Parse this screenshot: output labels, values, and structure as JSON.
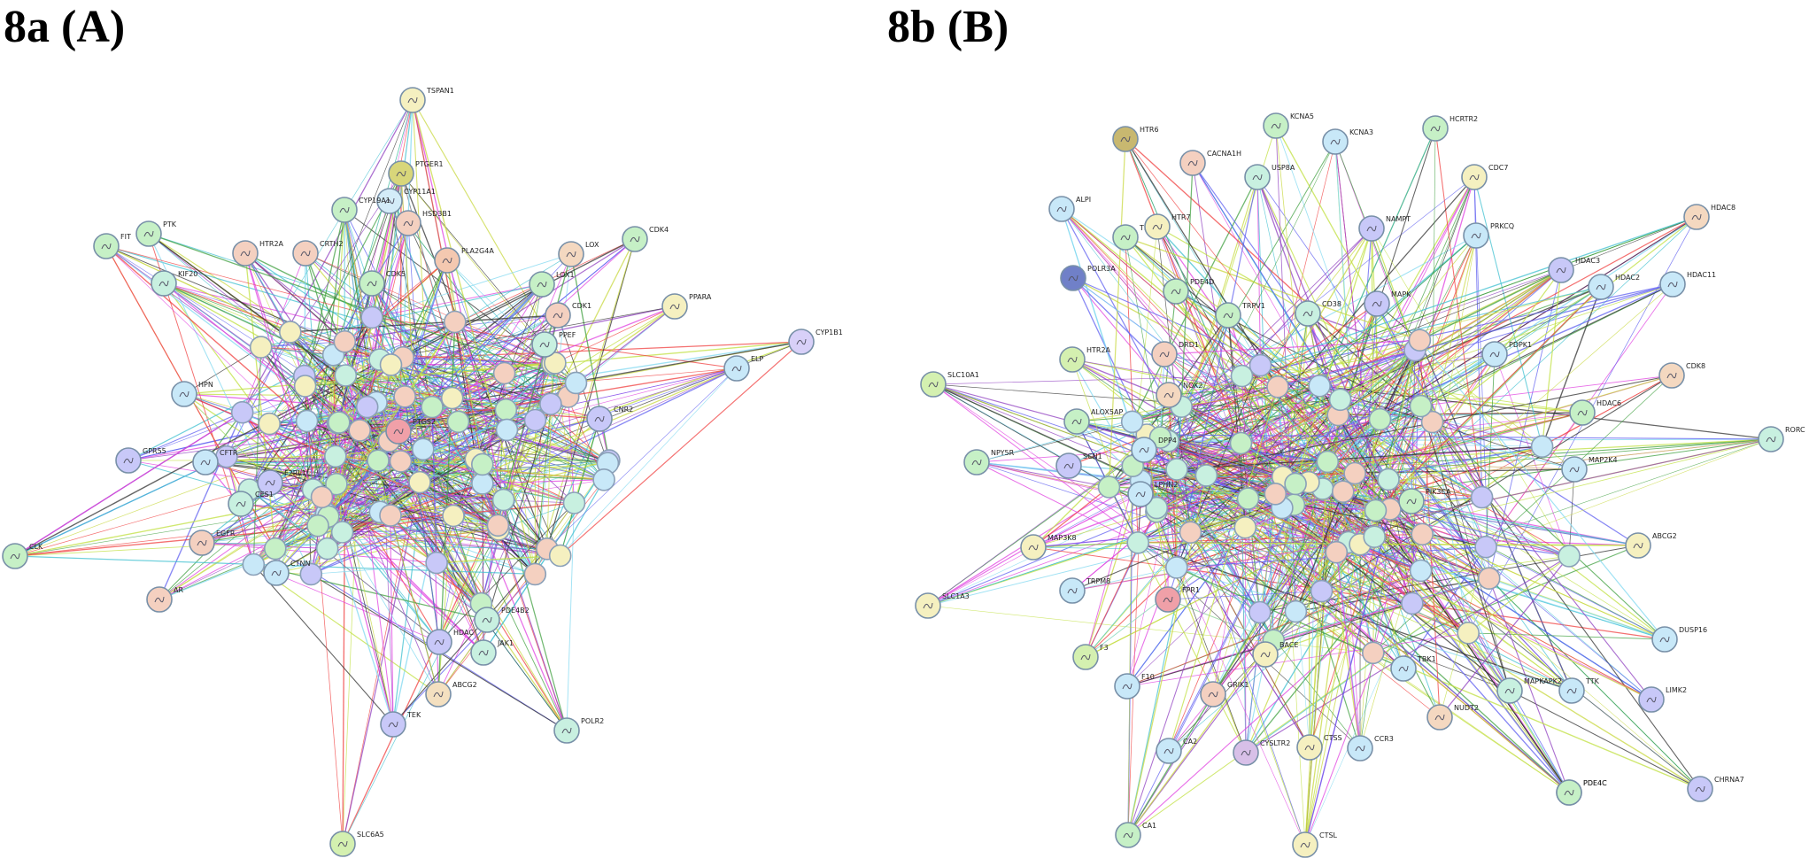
{
  "panels": [
    {
      "id": "a",
      "title": "8a (A)",
      "nodes": [
        {
          "label": "TSPAN1",
          "color": "#f5f0c0"
        },
        {
          "label": "PTGER1",
          "color": "#d8d67a"
        },
        {
          "label": "CYP11A1",
          "color": "#d4ecf8"
        },
        {
          "label": "CYP19A1",
          "color": "#c6f0c6"
        },
        {
          "label": "HSD3B1",
          "color": "#f4d0c0"
        },
        {
          "label": "PLA2G4A",
          "color": "#f4c8b0"
        },
        {
          "label": "LOX",
          "color": "#f4d8c0"
        },
        {
          "label": "LOX1",
          "color": "#c6f0c6"
        },
        {
          "label": "CDK5",
          "color": "#c6f0c6"
        },
        {
          "label": "CDK4",
          "color": "#c6f0c6"
        },
        {
          "label": "PTK",
          "color": "#c6f0c6"
        },
        {
          "label": "FIT",
          "color": "#c6f0c6"
        },
        {
          "label": "KIF20",
          "color": "#c8f0e0"
        },
        {
          "label": "HTR2A",
          "color": "#f4d0c0"
        },
        {
          "label": "CRTH2",
          "color": "#f4d0c0"
        },
        {
          "label": "PPARA",
          "color": "#f5f0c0"
        },
        {
          "label": "CYP1B1",
          "color": "#d8d0f8"
        },
        {
          "label": "ELP",
          "color": "#c8e8f8"
        },
        {
          "label": "CDK1",
          "color": "#f4d0c0"
        },
        {
          "label": "PPEF",
          "color": "#c8f0e0"
        },
        {
          "label": "CNR2",
          "color": "#c8c8f8"
        },
        {
          "label": "CFTR",
          "color": "#c8e8f8"
        },
        {
          "label": "F2RL1",
          "color": "#c8c8f8"
        },
        {
          "label": "GPR55",
          "color": "#c8c8f8"
        },
        {
          "label": "CES1",
          "color": "#c8f0e0"
        },
        {
          "label": "HPN",
          "color": "#c8e8f8"
        },
        {
          "label": "PTGS2",
          "color": "#f0a0a8"
        },
        {
          "label": "CLK",
          "color": "#c6f0c6"
        },
        {
          "label": "SLC6A5",
          "color": "#d4f0b0"
        },
        {
          "label": "PDE4B2",
          "color": "#c8f0e0"
        },
        {
          "label": "HDAC",
          "color": "#c8c8f8"
        },
        {
          "label": "TEK",
          "color": "#c8c8f8"
        },
        {
          "label": "JAK1",
          "color": "#c8f0e0"
        },
        {
          "label": "ABCG2",
          "color": "#f4e0c0"
        },
        {
          "label": "AR",
          "color": "#f4d0c0"
        },
        {
          "label": "EGFR",
          "color": "#f4d0c0"
        },
        {
          "label": "CTNN",
          "color": "#c8e8f8"
        },
        {
          "label": "POLR2",
          "color": "#c8f0e0"
        }
      ]
    },
    {
      "id": "b",
      "title": "8b (B)",
      "nodes": [
        {
          "label": "HTR6",
          "color": "#c8b870"
        },
        {
          "label": "KCNA5",
          "color": "#c6f0c6"
        },
        {
          "label": "KCNA3",
          "color": "#c8e8f8"
        },
        {
          "label": "HCRTR2",
          "color": "#c6f0c6"
        },
        {
          "label": "CACNA1H",
          "color": "#f4d0c0"
        },
        {
          "label": "USP8A",
          "color": "#c8f0e0"
        },
        {
          "label": "CDC7",
          "color": "#f5f0c0"
        },
        {
          "label": "ALPI",
          "color": "#c8e8f8"
        },
        {
          "label": "TBBAS",
          "color": "#c6f0c6"
        },
        {
          "label": "HTR7",
          "color": "#f5f0c0"
        },
        {
          "label": "NAMPT",
          "color": "#c8c8f8"
        },
        {
          "label": "PRKCQ",
          "color": "#c8e8f8"
        },
        {
          "label": "HDAC8",
          "color": "#f4d8c0"
        },
        {
          "label": "PDE4D",
          "color": "#c6f0c6"
        },
        {
          "label": "MAPK",
          "color": "#c8c8f8"
        },
        {
          "label": "HDAC3",
          "color": "#c8c8f8"
        },
        {
          "label": "HDAC11",
          "color": "#c8e8f8"
        },
        {
          "label": "HDAC2",
          "color": "#c8e8f8"
        },
        {
          "label": "POLR3A",
          "color": "#7080c8"
        },
        {
          "label": "PDE4C",
          "color": "#c6f0c6"
        },
        {
          "label": "TRPV1",
          "color": "#c6f0c6"
        },
        {
          "label": "CD38",
          "color": "#c8f0e0"
        },
        {
          "label": "PDPK1",
          "color": "#c8e8f8"
        },
        {
          "label": "HTR2A",
          "color": "#d4f0b0"
        },
        {
          "label": "DRD1",
          "color": "#f4d0c0"
        },
        {
          "label": "CDK8",
          "color": "#f4d8c0"
        },
        {
          "label": "SLC10A1",
          "color": "#d4f0b0"
        },
        {
          "label": "NOX2",
          "color": "#f4d8c0"
        },
        {
          "label": "HDAC6",
          "color": "#c6f0c6"
        },
        {
          "label": "ALOX5AP",
          "color": "#c6f0c6"
        },
        {
          "label": "RORC",
          "color": "#c8f0e0"
        },
        {
          "label": "NPY5R",
          "color": "#c6f0c6"
        },
        {
          "label": "SCN1",
          "color": "#c8c8f8"
        },
        {
          "label": "DPP4",
          "color": "#c8e8f8"
        },
        {
          "label": "MAP2K4",
          "color": "#c8e8f8"
        },
        {
          "label": "LPHN2",
          "color": "#c8e8f8"
        },
        {
          "label": "MAP3K8",
          "color": "#f5f0c0"
        },
        {
          "label": "TRPM8",
          "color": "#c8e8f8"
        },
        {
          "label": "FPR1",
          "color": "#f0a0a8"
        },
        {
          "label": "ABCG2",
          "color": "#f5f0c0"
        },
        {
          "label": "SLC1A3",
          "color": "#f5f0c0"
        },
        {
          "label": "DUSP16",
          "color": "#c8e8f8"
        },
        {
          "label": "LIMK2",
          "color": "#c8c8f8"
        },
        {
          "label": "BACE",
          "color": "#f5f0c0"
        },
        {
          "label": "TBK1",
          "color": "#c8e8f8"
        },
        {
          "label": "MAPKAPK2",
          "color": "#c8f0e0"
        },
        {
          "label": "TTK",
          "color": "#c8e8f8"
        },
        {
          "label": "CA2",
          "color": "#c8e8f8"
        },
        {
          "label": "CTSS",
          "color": "#f5f0c0"
        },
        {
          "label": "CCR3",
          "color": "#c8e8f8"
        },
        {
          "label": "CYSLTR2",
          "color": "#d8c0e8"
        },
        {
          "label": "CA1",
          "color": "#c6f0c6"
        },
        {
          "label": "CTSL",
          "color": "#f5f0c0"
        },
        {
          "label": "PDE4C",
          "color": "#c6f0c6"
        },
        {
          "label": "CHRNA7",
          "color": "#c8c8f8"
        },
        {
          "label": "NUDT2",
          "color": "#f4d8c0"
        },
        {
          "label": "F10",
          "color": "#c8e8f8"
        },
        {
          "label": "F3",
          "color": "#d4f0b0"
        },
        {
          "label": "GRIK1",
          "color": "#f4d0c0"
        },
        {
          "label": "PIK3CA",
          "color": "#c6f0c6"
        }
      ]
    }
  ],
  "edge_colors": [
    "#c8d840",
    "#303030",
    "#9040c0",
    "#e040e0",
    "#40c0d0",
    "#40a040",
    "#6060f0",
    "#80d8f0",
    "#f04040",
    "#c0e040"
  ]
}
